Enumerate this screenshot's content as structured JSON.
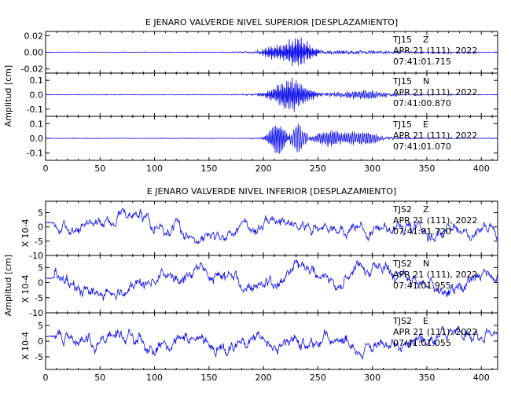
{
  "chart_data": [
    {
      "type": "line",
      "title": "E JENARO VALVERDE NIVEL SUPERIOR [DESPLAZAMIENTO]",
      "ylabel": "Amplitud [cm]",
      "xlim": [
        0,
        415
      ],
      "x_ticks": [
        "0",
        "50",
        "100",
        "150",
        "200",
        "250",
        "300",
        "350",
        "400"
      ],
      "panels": [
        {
          "station": "TJ15",
          "component": "Z",
          "date": "APR 21 (111), 2022",
          "time": "07:41:01.715",
          "ylim": [
            -0.025,
            0.025
          ],
          "y_ticks": [
            "0.02",
            "0.00",
            "-0.02"
          ],
          "y_unit": "",
          "peak": 0.023,
          "events": [
            {
              "t": 232,
              "w": 14,
              "a": 0.02,
              "f": 0.9
            },
            {
              "t": 208,
              "w": 10,
              "a": 0.008,
              "f": 0.9
            }
          ],
          "noise": 0.0004,
          "bg_amp": 0.002,
          "bg_window": [
            160,
            360
          ]
        },
        {
          "station": "TJ15",
          "component": "N",
          "date": "APR 21 (111), 2022",
          "time": "07:41:00.870",
          "ylim": [
            -0.15,
            0.15
          ],
          "y_ticks": [
            "0.1",
            "0.0",
            "-0.1"
          ],
          "y_unit": "",
          "peak": 0.14,
          "events": [
            {
              "t": 225,
              "w": 18,
              "a": 0.12,
              "f": 0.8
            },
            {
              "t": 290,
              "w": 22,
              "a": 0.03,
              "f": 0.6
            }
          ],
          "noise": 0.002,
          "bg_amp": 0.01,
          "bg_window": [
            160,
            370
          ]
        },
        {
          "station": "TJ15",
          "component": "E",
          "date": "APR 21 (111), 2022",
          "time": "07:41:01.070",
          "ylim": [
            -0.15,
            0.15
          ],
          "y_ticks": [
            "0.1",
            "0.0",
            "-0.1"
          ],
          "y_unit": "",
          "peak": 0.14,
          "events": [
            {
              "t": 213,
              "w": 8,
              "a": 0.13,
              "f": 0.7
            },
            {
              "t": 232,
              "w": 6,
              "a": 0.11,
              "f": 0.5
            },
            {
              "t": 262,
              "w": 18,
              "a": 0.06,
              "f": 0.6
            },
            {
              "t": 292,
              "w": 14,
              "a": 0.06,
              "f": 0.55
            }
          ],
          "noise": 0.002,
          "bg_amp": 0.01,
          "bg_window": [
            170,
            370
          ]
        }
      ]
    },
    {
      "type": "line",
      "title": "E JENARO VALVERDE NIVEL INFERIOR [DESPLAZAMIENTO]",
      "ylabel": "Amplitud [cm]",
      "xlim": [
        0,
        415
      ],
      "x_ticks": [
        "0",
        "50",
        "100",
        "150",
        "200",
        "250",
        "300",
        "350",
        "400"
      ],
      "panels": [
        {
          "station": "TJS2",
          "component": "Z",
          "date": "APR 21 (111), 2022",
          "time": "07:41:01.720",
          "ylim": [
            -10,
            9
          ],
          "y_ticks": [
            "5",
            "0",
            "-5",
            "-10"
          ],
          "y_unit": "X 10-4",
          "seed": 7,
          "scale": 3.2
        },
        {
          "station": "TJS2",
          "component": "N",
          "date": "APR 21 (111), 2022",
          "time": "07:41:01.955",
          "ylim": [
            -10,
            9
          ],
          "y_ticks": [
            "5",
            "0",
            "-5",
            "-10"
          ],
          "y_unit": "X 10-4",
          "seed": 13,
          "scale": 3.4
        },
        {
          "station": "TJS2",
          "component": "E",
          "date": "APR 21 (111), 2022",
          "time": "07:41:01.055",
          "ylim": [
            -9,
            9
          ],
          "y_ticks": [
            "5",
            "0",
            "-5"
          ],
          "y_unit": "X 10-4",
          "seed": 29,
          "scale": 3.0
        }
      ]
    }
  ],
  "colors": {
    "trace": "#1010ee",
    "axis": "#000000"
  }
}
